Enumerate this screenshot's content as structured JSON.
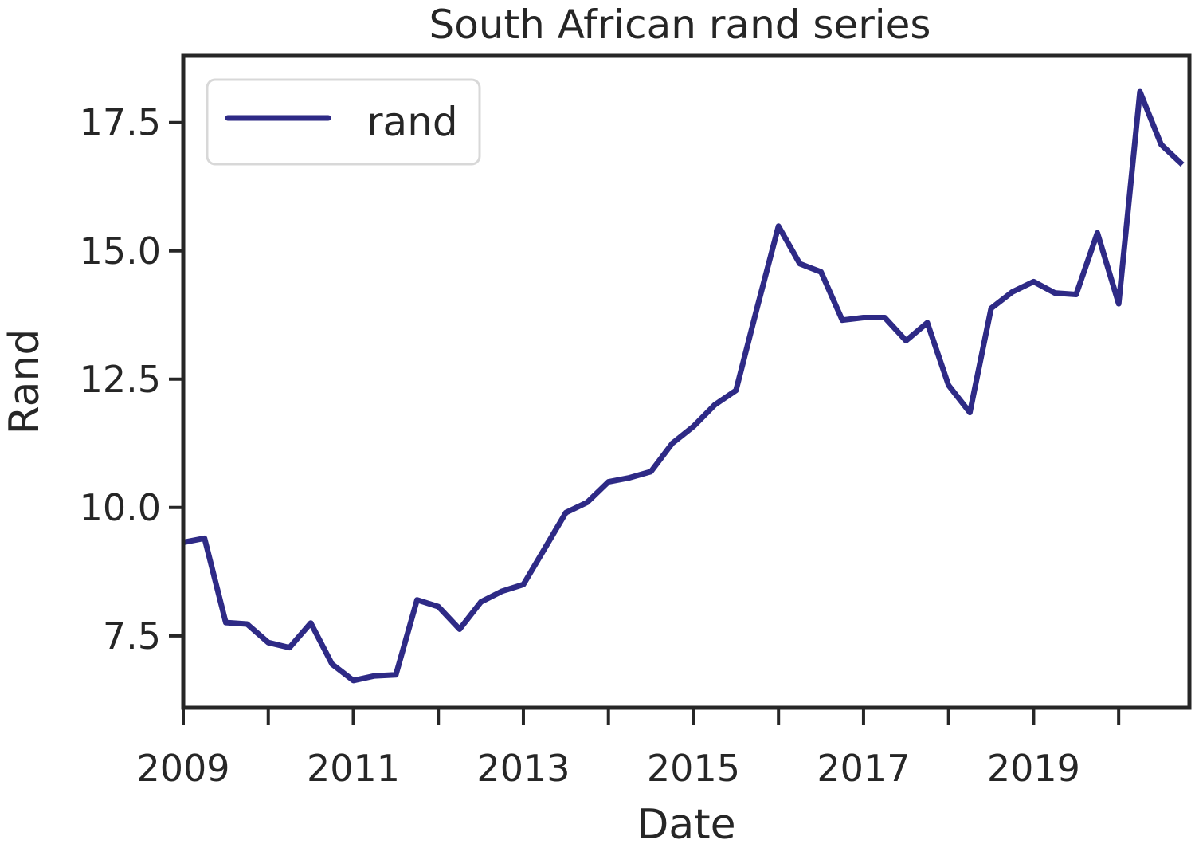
{
  "chart_data": {
    "type": "line",
    "title": "South African rand series",
    "xlabel": "Date",
    "ylabel": "Rand",
    "xlim": [
      "2009-01-01",
      "2020-10-31"
    ],
    "ylim": [
      6.1,
      18.8
    ],
    "x_ticks": [
      "2009",
      "2010",
      "2011",
      "2012",
      "2013",
      "2014",
      "2015",
      "2016",
      "2017",
      "2018",
      "2019",
      "2020"
    ],
    "x_tick_labels": [
      "2009",
      "",
      "2011",
      "",
      "2013",
      "",
      "2015",
      "",
      "2017",
      "",
      "2019",
      ""
    ],
    "y_ticks": [
      7.5,
      10.0,
      12.5,
      15.0,
      17.5
    ],
    "y_tick_labels": [
      "7.5",
      "10.0",
      "12.5",
      "15.0",
      "17.5"
    ],
    "grid": false,
    "legend_position": "upper-left",
    "series": [
      {
        "name": "rand",
        "color": "#2e2a86",
        "x": [
          "2009-01",
          "2009-04",
          "2009-07",
          "2009-10",
          "2010-01",
          "2010-04",
          "2010-07",
          "2010-10",
          "2011-01",
          "2011-04",
          "2011-07",
          "2011-10",
          "2012-01",
          "2012-04",
          "2012-07",
          "2012-10",
          "2013-01",
          "2013-04",
          "2013-07",
          "2013-10",
          "2014-01",
          "2014-04",
          "2014-07",
          "2014-10",
          "2015-01",
          "2015-04",
          "2015-07",
          "2015-10",
          "2016-01",
          "2016-04",
          "2016-07",
          "2016-10",
          "2017-01",
          "2017-04",
          "2017-07",
          "2017-10",
          "2018-01",
          "2018-04",
          "2018-07",
          "2018-10",
          "2019-01",
          "2019-04",
          "2019-07",
          "2019-10",
          "2020-01",
          "2020-04",
          "2020-07",
          "2020-10"
        ],
        "values": [
          9.32,
          9.4,
          7.76,
          7.73,
          7.37,
          7.27,
          7.75,
          6.95,
          6.63,
          6.72,
          6.74,
          8.2,
          8.07,
          7.63,
          8.16,
          8.37,
          8.5,
          9.2,
          9.9,
          10.1,
          10.5,
          10.58,
          10.7,
          11.25,
          11.58,
          12.0,
          12.28,
          13.9,
          15.48,
          14.75,
          14.59,
          13.65,
          13.7,
          13.7,
          13.25,
          13.6,
          12.38,
          11.85,
          13.88,
          14.2,
          14.4,
          14.18,
          14.15,
          15.35,
          13.97,
          18.1,
          17.07,
          16.68
        ]
      }
    ]
  }
}
